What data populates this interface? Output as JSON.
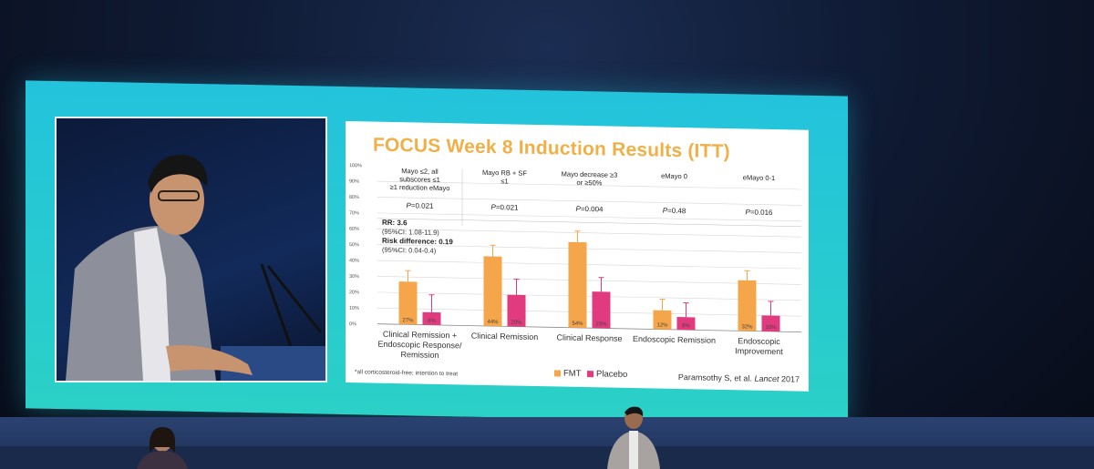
{
  "slide": {
    "title": "FOCUS Week 8 Induction Results (ITT)",
    "footnote": "*all corticosteroid-free; intention to treat",
    "citation_prefix": "Paramsothy S, et al. ",
    "citation_journal": "Lancet",
    "citation_year": " 2017",
    "stats_rr": "RR: 3.6",
    "stats_rr_ci": "(95%CI: 1.08-11.9)",
    "stats_rd": "Risk difference: 0.19",
    "stats_rd_ci": "(95%CI: 0.04-0.4)"
  },
  "chart_data": {
    "type": "bar",
    "title": "FOCUS Week 8 Induction Results (ITT)",
    "ylim": [
      0,
      100
    ],
    "y_ticks": [
      "0%",
      "10%",
      "20%",
      "30%",
      "40%",
      "50%",
      "60%",
      "70%",
      "80%",
      "90%",
      "100%"
    ],
    "categories": [
      [
        "Clinical Remission +",
        "Endoscopic Response/",
        "Remission"
      ],
      [
        "Clinical Remission"
      ],
      [
        "Clinical Response"
      ],
      [
        "Endoscopic Remission"
      ],
      [
        "Endoscopic",
        "Improvement"
      ]
    ],
    "definitions": [
      [
        "Mayo ≤2, all",
        "subscores ≤1",
        "≥1 reduction eMayo"
      ],
      [
        "Mayo RB + SF",
        "≤1"
      ],
      [
        "Mayo decrease ≥3",
        "or ≥50%"
      ],
      [
        "eMayo 0"
      ],
      [
        "eMayo 0-1"
      ]
    ],
    "p_values": [
      "=0.021",
      "=0.021",
      "=0.004",
      "=0.48",
      "=0.016"
    ],
    "p_label": "P",
    "series": [
      {
        "name": "FMT",
        "color": "#f5a54a",
        "values": [
          27,
          44,
          54,
          12,
          32
        ],
        "labels": [
          "27%",
          "44%",
          "54%",
          "12%",
          "32%"
        ],
        "err_high": [
          34,
          51,
          61,
          19,
          38
        ]
      },
      {
        "name": "Placebo",
        "color": "#e23a7e",
        "values": [
          8,
          20,
          23,
          8,
          10
        ],
        "labels": [
          "8%",
          "20%",
          "23%",
          "8%",
          "10%"
        ],
        "err_high": [
          19,
          30,
          32,
          17,
          19
        ]
      }
    ],
    "legend_position": "bottom-center",
    "grid": true
  }
}
